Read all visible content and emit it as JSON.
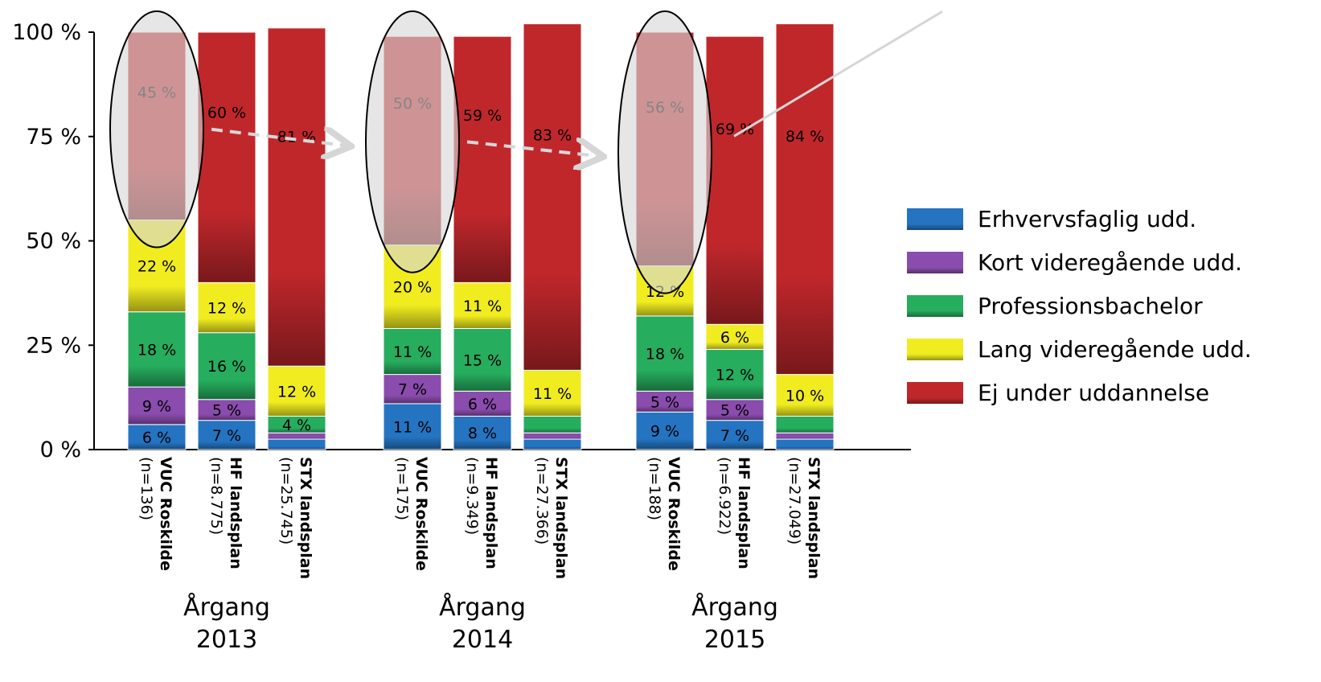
{
  "chart_data": {
    "type": "bar",
    "stacked": true,
    "normalized": true,
    "ylim": [
      0,
      100
    ],
    "yticks": [
      "0 %",
      "25 %",
      "50 %",
      "75 %",
      "100 %"
    ],
    "legend_position": "right",
    "series": [
      {
        "name": "Erhvervsfaglig udd.",
        "color": "#2474c2"
      },
      {
        "name": "Kort videregående udd.",
        "color": "#8a4cad"
      },
      {
        "name": "Professionsbachelor",
        "color": "#26ad5e"
      },
      {
        "name": "Lang videregående udd.",
        "color": "#f0ec20"
      },
      {
        "name": "Ej under uddannelse",
        "color": "#c0272b"
      }
    ],
    "groups": [
      {
        "label_line1": "Årgang",
        "label_line2": "2013",
        "bars": [
          {
            "name": "VUC Roskilde",
            "n": "(n=136)",
            "values": [
              6,
              9,
              18,
              22,
              45
            ],
            "labels": [
              "6 %",
              "9 %",
              "18 %",
              "22 %",
              "45 %"
            ],
            "highlighted": true
          },
          {
            "name": "HF landsplan",
            "n": "(n=8.775)",
            "values": [
              7,
              5,
              16,
              12,
              60
            ],
            "labels": [
              "7 %",
              "5 %",
              "16 %",
              "12 %",
              "60 %"
            ],
            "highlighted": false
          },
          {
            "name": "STX landsplan",
            "n": "(n=25.745)",
            "values": [
              2.5,
              1.5,
              4,
              12,
              81
            ],
            "labels": [
              "",
              "",
              "4 %",
              "12 %",
              "81 %"
            ],
            "highlighted": false
          }
        ]
      },
      {
        "label_line1": "Årgang",
        "label_line2": "2014",
        "bars": [
          {
            "name": "VUC Roskilde",
            "n": "(n=175)",
            "values": [
              11,
              7,
              11,
              20,
              50
            ],
            "labels": [
              "11 %",
              "7 %",
              "11 %",
              "20 %",
              "50 %"
            ],
            "highlighted": true
          },
          {
            "name": "HF landsplan",
            "n": "(n=9.349)",
            "values": [
              8,
              6,
              15,
              11,
              59
            ],
            "labels": [
              "8 %",
              "6 %",
              "15 %",
              "11 %",
              "59 %"
            ],
            "highlighted": false
          },
          {
            "name": "STX landsplan",
            "n": "(n=27.366)",
            "values": [
              2.5,
              1.5,
              4,
              11,
              83
            ],
            "labels": [
              "",
              "",
              "",
              "11 %",
              "83 %"
            ],
            "highlighted": false
          }
        ]
      },
      {
        "label_line1": "Årgang",
        "label_line2": "2015",
        "bars": [
          {
            "name": "VUC Roskilde",
            "n": "(n=188)",
            "values": [
              9,
              5,
              18,
              12,
              56
            ],
            "labels": [
              "9 %",
              "5 %",
              "18 %",
              "12 %",
              "56 %"
            ],
            "highlighted": true
          },
          {
            "name": "HF landsplan",
            "n": "(n=6.922)",
            "values": [
              7,
              5,
              12,
              6,
              69
            ],
            "labels": [
              "7 %",
              "5 %",
              "12 %",
              "6 %",
              "69 %"
            ],
            "highlighted": false
          },
          {
            "name": "STX landsplan",
            "n": "(n=27.049)",
            "values": [
              2.5,
              1.5,
              4,
              10,
              84
            ],
            "labels": [
              "",
              "",
              "",
              "10 %",
              "84 %"
            ],
            "highlighted": false
          }
        ]
      }
    ]
  }
}
